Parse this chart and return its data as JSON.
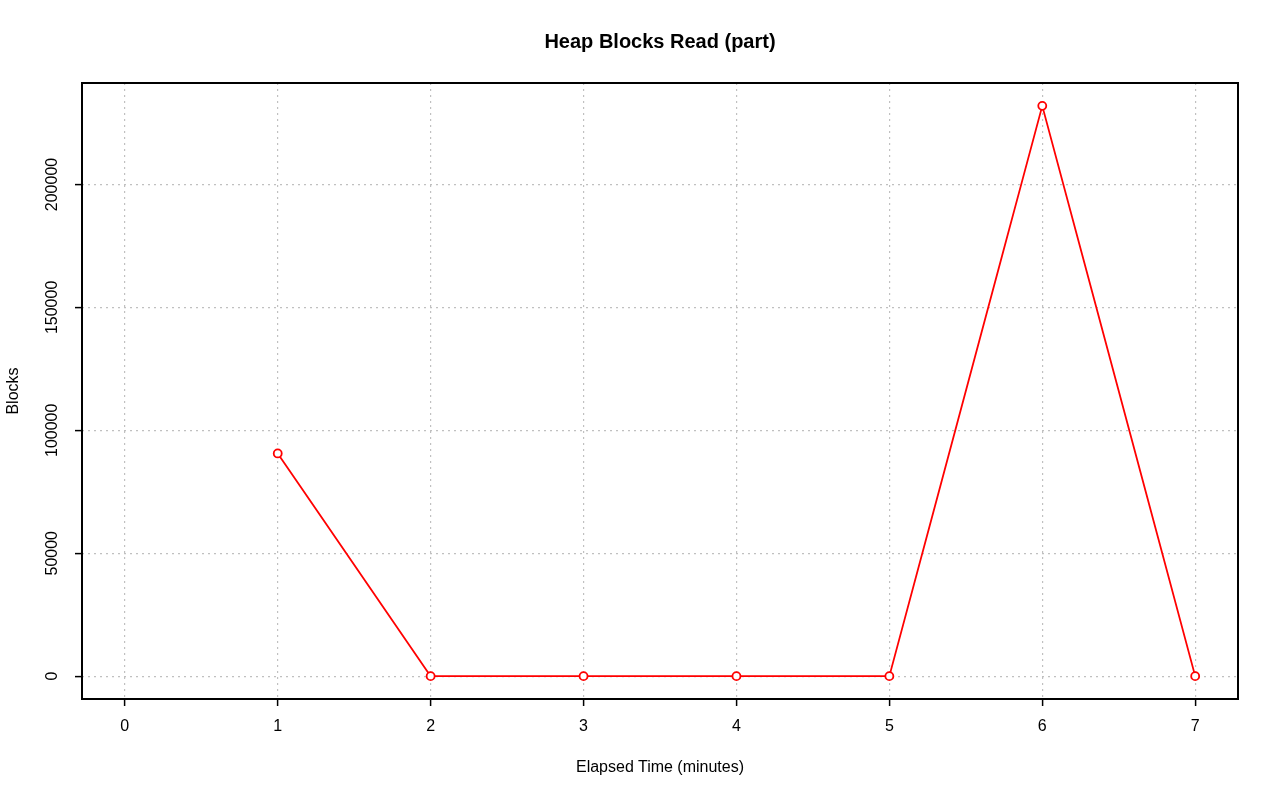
{
  "chart_data": {
    "type": "line",
    "title": "Heap Blocks Read (part)",
    "xlabel": "Elapsed Time (minutes)",
    "ylabel": "Blocks",
    "x": [
      1,
      2,
      3,
      4,
      5,
      6,
      7
    ],
    "series": [
      {
        "color": "#ff0000",
        "values": [
          90600,
          0,
          0,
          0,
          0,
          232000,
          0
        ]
      }
    ],
    "xlim": [
      -0.28,
      7.28
    ],
    "ylim": [
      -9300,
      241300
    ],
    "xticks": [
      0,
      1,
      2,
      3,
      4,
      5,
      6,
      7
    ],
    "yticks": [
      0,
      50000,
      100000,
      150000,
      200000
    ],
    "grid": true,
    "marker": "circle",
    "line_style": "solid"
  }
}
